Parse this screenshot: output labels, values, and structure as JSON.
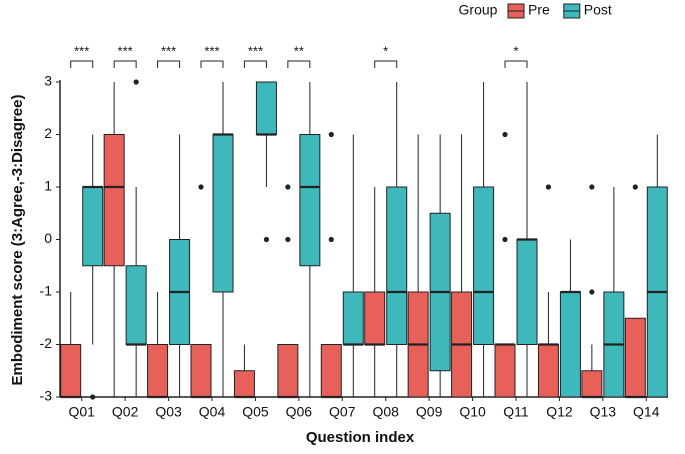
{
  "chart_data": {
    "type": "box",
    "x_label": "Question index",
    "y_label": "Embodiment score (3:Agree,-3:Disagree)",
    "legend_title": "Group",
    "legend_position": "top-right",
    "grid": false,
    "categories": [
      "Q01",
      "Q02",
      "Q03",
      "Q04",
      "Q05",
      "Q06",
      "Q07",
      "Q08",
      "Q09",
      "Q10",
      "Q11",
      "Q12",
      "Q13",
      "Q14"
    ],
    "ylim": [
      -3,
      3
    ],
    "yticks": [
      -3,
      -2,
      -1,
      0,
      1,
      2,
      3
    ],
    "series": [
      {
        "name": "Pre",
        "color": "#e8605a",
        "boxes": [
          {
            "whisker_low": -3,
            "q1": -3,
            "median": -3,
            "q3": -2,
            "whisker_high": -1,
            "outliers": []
          },
          {
            "whisker_low": -3,
            "q1": -0.5,
            "median": 1,
            "q3": 2,
            "whisker_high": 3,
            "outliers": []
          },
          {
            "whisker_low": -3,
            "q1": -3,
            "median": -3,
            "q3": -2,
            "whisker_high": -1,
            "outliers": []
          },
          {
            "whisker_low": -3,
            "q1": -3,
            "median": -3,
            "q3": -2,
            "whisker_high": -2,
            "outliers": [
              1
            ]
          },
          {
            "whisker_low": -3,
            "q1": -3,
            "median": -3,
            "q3": -2.5,
            "whisker_high": -2,
            "outliers": []
          },
          {
            "whisker_low": -3,
            "q1": -3,
            "median": -3,
            "q3": -2,
            "whisker_high": -2,
            "outliers": [
              0,
              1
            ]
          },
          {
            "whisker_low": -3,
            "q1": -3,
            "median": -3,
            "q3": -2,
            "whisker_high": -2,
            "outliers": [
              0,
              2
            ]
          },
          {
            "whisker_low": -3,
            "q1": -2,
            "median": -2,
            "q3": -1,
            "whisker_high": 1,
            "outliers": []
          },
          {
            "whisker_low": -3,
            "q1": -3,
            "median": -2,
            "q3": -1,
            "whisker_high": 2,
            "outliers": []
          },
          {
            "whisker_low": -3,
            "q1": -3,
            "median": -2,
            "q3": -1,
            "whisker_high": 2,
            "outliers": []
          },
          {
            "whisker_low": -3,
            "q1": -3,
            "median": -2,
            "q3": -2,
            "whisker_high": -2,
            "outliers": [
              0,
              2
            ]
          },
          {
            "whisker_low": -3,
            "q1": -3,
            "median": -2,
            "q3": -2,
            "whisker_high": -1,
            "outliers": [
              1
            ]
          },
          {
            "whisker_low": -3,
            "q1": -3,
            "median": -3,
            "q3": -2.5,
            "whisker_high": -2,
            "outliers": [
              -1,
              1
            ]
          },
          {
            "whisker_low": -3,
            "q1": -3,
            "median": -3,
            "q3": -1.5,
            "whisker_high": -1.5,
            "outliers": [
              1
            ]
          }
        ]
      },
      {
        "name": "Post",
        "color": "#3fb8bb",
        "boxes": [
          {
            "whisker_low": -2,
            "q1": -0.5,
            "median": 1,
            "q3": 1,
            "whisker_high": 2,
            "outliers": [
              -3
            ]
          },
          {
            "whisker_low": -3,
            "q1": -2,
            "median": -2,
            "q3": -0.5,
            "whisker_high": 1,
            "outliers": [
              3
            ]
          },
          {
            "whisker_low": -3,
            "q1": -2,
            "median": -1,
            "q3": 0,
            "whisker_high": 2,
            "outliers": []
          },
          {
            "whisker_low": -3,
            "q1": -1,
            "median": 2,
            "q3": 2,
            "whisker_high": 3,
            "outliers": []
          },
          {
            "whisker_low": 1,
            "q1": 2,
            "median": 2,
            "q3": 3,
            "whisker_high": 3,
            "outliers": [
              0
            ]
          },
          {
            "whisker_low": -3,
            "q1": -0.5,
            "median": 1,
            "q3": 2,
            "whisker_high": 3,
            "outliers": []
          },
          {
            "whisker_low": -3,
            "q1": -2,
            "median": -2,
            "q3": -1,
            "whisker_high": 2,
            "outliers": []
          },
          {
            "whisker_low": -3,
            "q1": -2,
            "median": -1,
            "q3": 1,
            "whisker_high": 3,
            "outliers": []
          },
          {
            "whisker_low": -3,
            "q1": -2.5,
            "median": -1,
            "q3": 0.5,
            "whisker_high": 2,
            "outliers": []
          },
          {
            "whisker_low": -3,
            "q1": -2,
            "median": -1,
            "q3": 1,
            "whisker_high": 3,
            "outliers": []
          },
          {
            "whisker_low": -3,
            "q1": -2,
            "median": 0,
            "q3": 0,
            "whisker_high": 3,
            "outliers": []
          },
          {
            "whisker_low": -3,
            "q1": -3,
            "median": -1,
            "q3": -1,
            "whisker_high": 0,
            "outliers": []
          },
          {
            "whisker_low": -3,
            "q1": -3,
            "median": -2,
            "q3": -1,
            "whisker_high": 1,
            "outliers": []
          },
          {
            "whisker_low": -3,
            "q1": -3,
            "median": -1,
            "q3": 1,
            "whisker_high": 2,
            "outliers": []
          }
        ]
      }
    ],
    "annotations": [
      {
        "category": "Q01",
        "label": "***"
      },
      {
        "category": "Q02",
        "label": "***"
      },
      {
        "category": "Q03",
        "label": "***"
      },
      {
        "category": "Q04",
        "label": "***"
      },
      {
        "category": "Q05",
        "label": "***"
      },
      {
        "category": "Q06",
        "label": "**"
      },
      {
        "category": "Q08",
        "label": "*"
      },
      {
        "category": "Q11",
        "label": "*"
      }
    ]
  }
}
